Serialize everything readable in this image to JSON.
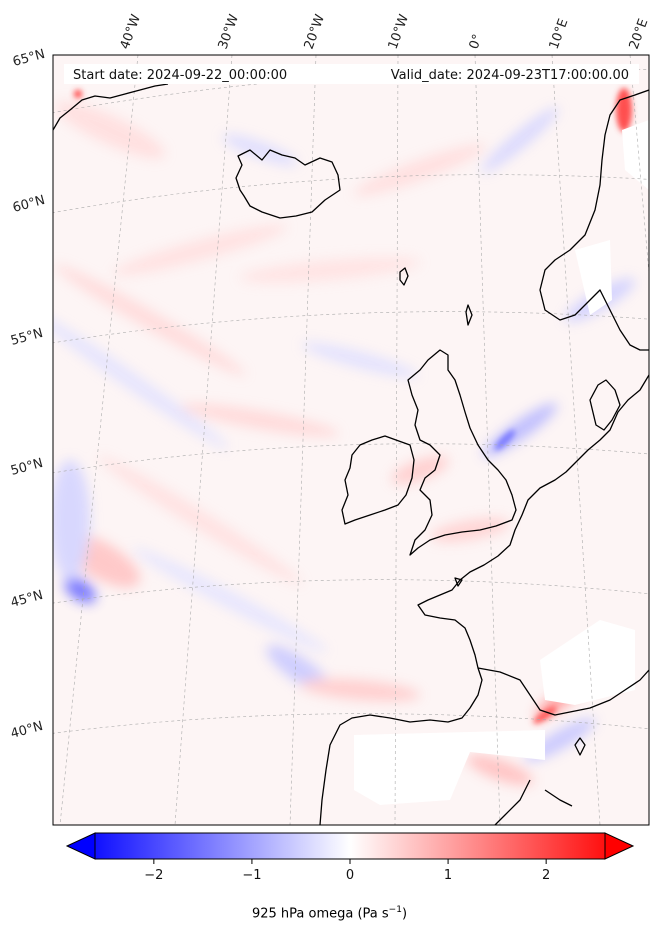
{
  "map": {
    "start_date_label": "Start date: 2024-09-22_00:00:00",
    "valid_date_label": "Valid_date: 2024-09-23T17:00:00.00",
    "longitude_labels": [
      "40°W",
      "30°W",
      "20°W",
      "10°W",
      "0°",
      "10°E",
      "20°E"
    ],
    "latitude_labels": [
      "65°N",
      "60°N",
      "55°N",
      "50°N",
      "45°N",
      "40°N"
    ],
    "variable": "925 hPa omega",
    "units_base": "(Pa s",
    "units_exp": "−1",
    "units_close": ")",
    "coastline_color": "#000000",
    "gridline_color": "#aaaaaa"
  },
  "colorbar": {
    "cmap": "bwr",
    "min": -2.6,
    "max": 2.6,
    "tick_values": [
      -2,
      -1,
      0,
      1,
      2
    ],
    "tick_labels": [
      "−2",
      "−1",
      "0",
      "1",
      "2"
    ],
    "extend": "both",
    "low_color": "#0000ff",
    "mid_color": "#ffffff",
    "high_color": "#ff0000"
  }
}
